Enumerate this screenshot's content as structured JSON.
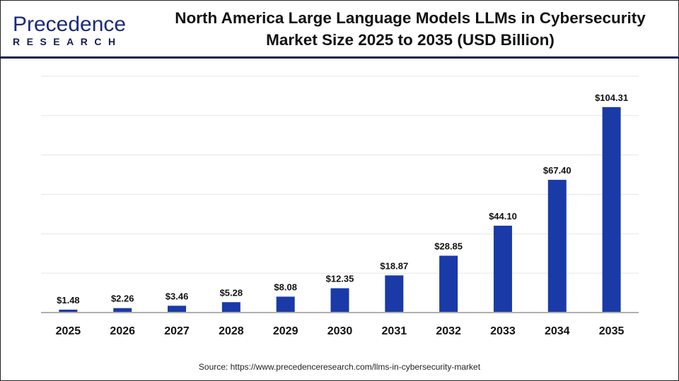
{
  "header": {
    "logo_main": "Precedence",
    "logo_sub": "RESEARCH",
    "title_line1": "North America Large Language Models LLMs in Cybersecurity",
    "title_line2": "Market Size 2025 to 2035 (USD Billion)"
  },
  "source": "Source: https://www.precedenceresearch.com/llms-in-cybersecurity-market",
  "colors": {
    "bar": "#1a3aa8",
    "header_rule": "#0f1a4a",
    "grid": "#e6e6e6"
  },
  "chart_data": {
    "type": "bar",
    "title": "North America Large Language Models LLMs in Cybersecurity Market Size 2025 to 2035 (USD Billion)",
    "categories": [
      "2025",
      "2026",
      "2027",
      "2028",
      "2029",
      "2030",
      "2031",
      "2032",
      "2033",
      "2034",
      "2035"
    ],
    "values": [
      1.48,
      2.26,
      3.46,
      5.28,
      8.08,
      12.35,
      18.87,
      28.85,
      44.1,
      67.4,
      104.31
    ],
    "data_labels": [
      "$1.48",
      "$2.26",
      "$3.46",
      "$5.28",
      "$8.08",
      "$12.35",
      "$18.87",
      "$28.85",
      "$44.10",
      "$67.40",
      "$104.31"
    ],
    "xlabel": "",
    "ylabel": "",
    "ylim": [
      0,
      120
    ],
    "grid": true,
    "y_tick_labels_shown": false
  }
}
